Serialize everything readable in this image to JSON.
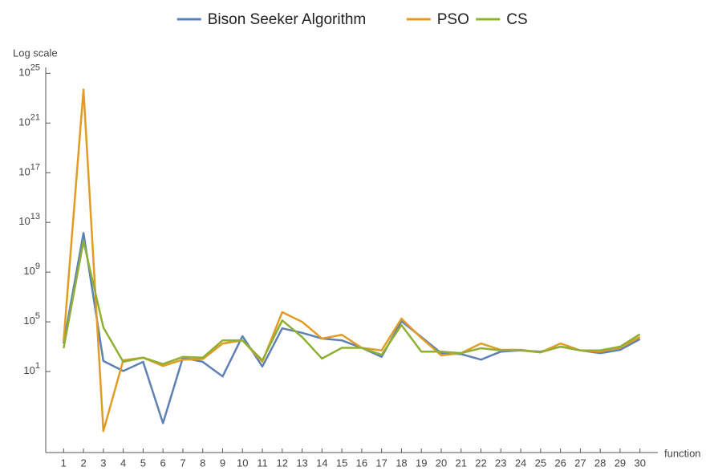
{
  "chart_data": {
    "type": "line",
    "y_axis_label": "Log scale",
    "x_axis_label": "function",
    "x": [
      1,
      2,
      3,
      4,
      5,
      6,
      7,
      8,
      9,
      10,
      11,
      12,
      13,
      14,
      15,
      16,
      17,
      18,
      19,
      20,
      21,
      22,
      23,
      24,
      25,
      26,
      27,
      28,
      29,
      30
    ],
    "xlim": [
      0.1,
      30.9
    ],
    "xticks": [
      1,
      2,
      3,
      4,
      5,
      6,
      7,
      8,
      9,
      10,
      11,
      12,
      13,
      14,
      15,
      16,
      17,
      18,
      19,
      20,
      21,
      22,
      23,
      24,
      25,
      26,
      27,
      28,
      29,
      30
    ],
    "ylog": true,
    "ylim": [
      3e-06,
      3e+25
    ],
    "yticks": [
      {
        "value": 10,
        "label": "10^1"
      },
      {
        "value": 100000.0,
        "label": "10^5"
      },
      {
        "value": 1000000000.0,
        "label": "10^9"
      },
      {
        "value": 10000000000000.0,
        "label": "10^13"
      },
      {
        "value": 1e+17,
        "label": "10^17"
      },
      {
        "value": 1e+21,
        "label": "10^21"
      },
      {
        "value": 1e+25,
        "label": "10^25"
      }
    ],
    "legend": "top",
    "series": [
      {
        "name": "Bison Seeker Algorithm",
        "color": "#5e81b5",
        "values": [
          1800,
          1400000000000.0,
          70,
          11,
          60,
          0.0007,
          130,
          60,
          4,
          7000,
          25,
          30000,
          13000,
          4500,
          3200,
          800,
          150,
          110000,
          6000,
          300,
          250,
          90,
          400,
          500,
          400,
          1000,
          500,
          300,
          550,
          4000
        ]
      },
      {
        "name": "PSO",
        "color": "#e19c24",
        "values": [
          2800,
          5e+23,
          0.00016,
          80,
          130,
          28,
          90,
          100,
          1800,
          3200,
          60,
          600000,
          100000,
          4500,
          9000,
          800,
          500,
          180000,
          5000,
          200,
          300,
          1800,
          550,
          550,
          350,
          1800,
          500,
          400,
          800,
          6000
        ]
      },
      {
        "name": "CS",
        "color": "#8fb032",
        "values": [
          750,
          300000000000.0,
          35000,
          60,
          130,
          40,
          150,
          130,
          3200,
          3200,
          80,
          130000,
          6000,
          110,
          800,
          800,
          220,
          55000,
          400,
          400,
          300,
          750,
          500,
          500,
          350,
          1000,
          500,
          500,
          1000,
          10000
        ]
      }
    ]
  }
}
